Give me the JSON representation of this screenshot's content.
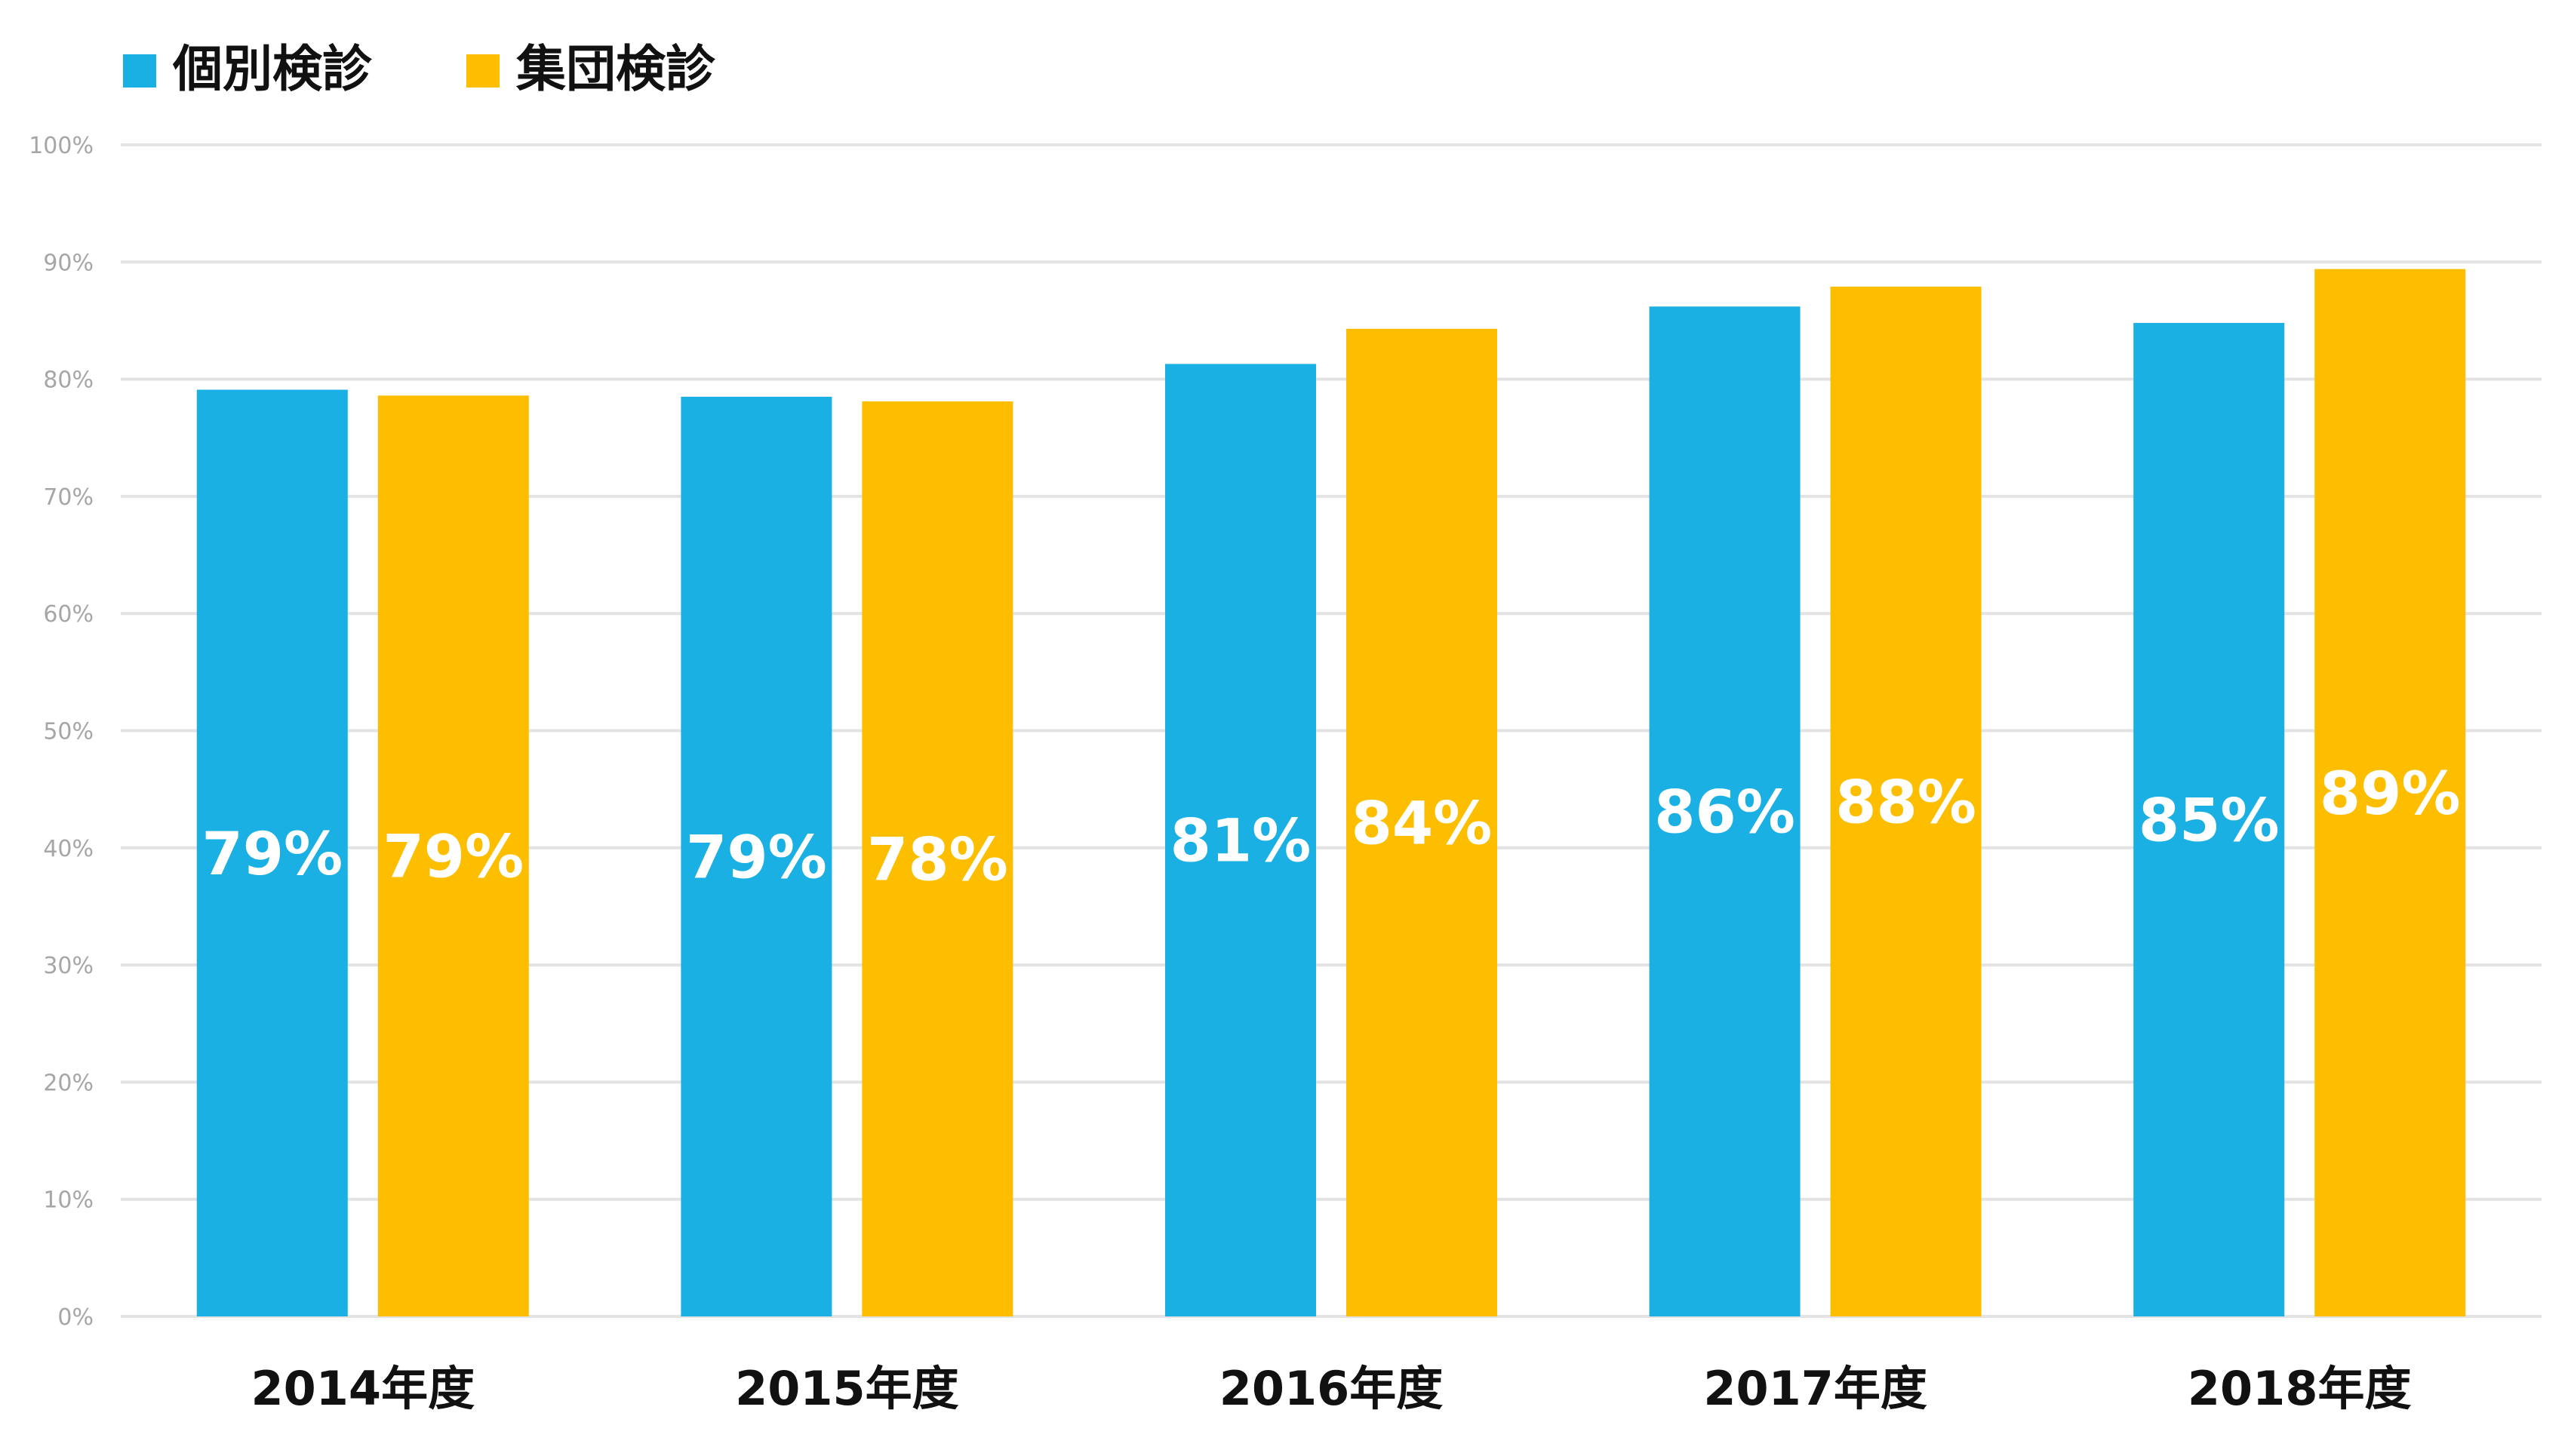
{
  "chart_data": {
    "type": "bar",
    "categories": [
      "2014年度",
      "2015年度",
      "2016年度",
      "2017年度",
      "2018年度"
    ],
    "series": [
      {
        "name": "個別検診",
        "color": "#1bb0e3",
        "values": [
          79.1,
          78.5,
          81.3,
          86.2,
          84.8
        ],
        "labels": [
          "79%",
          "79%",
          "81%",
          "86%",
          "85%"
        ]
      },
      {
        "name": "集団検診",
        "color": "#fdbe00",
        "values": [
          78.6,
          78.1,
          84.3,
          87.9,
          89.4
        ],
        "labels": [
          "79%",
          "78%",
          "84%",
          "88%",
          "89%"
        ]
      }
    ],
    "ylim": [
      0,
      100
    ],
    "yticks": [
      "0%",
      "10%",
      "20%",
      "30%",
      "40%",
      "50%",
      "60%",
      "70%",
      "80%",
      "90%",
      "100%"
    ],
    "grid": true,
    "gridColor": "#e3e3e3",
    "legend": "top-left"
  }
}
